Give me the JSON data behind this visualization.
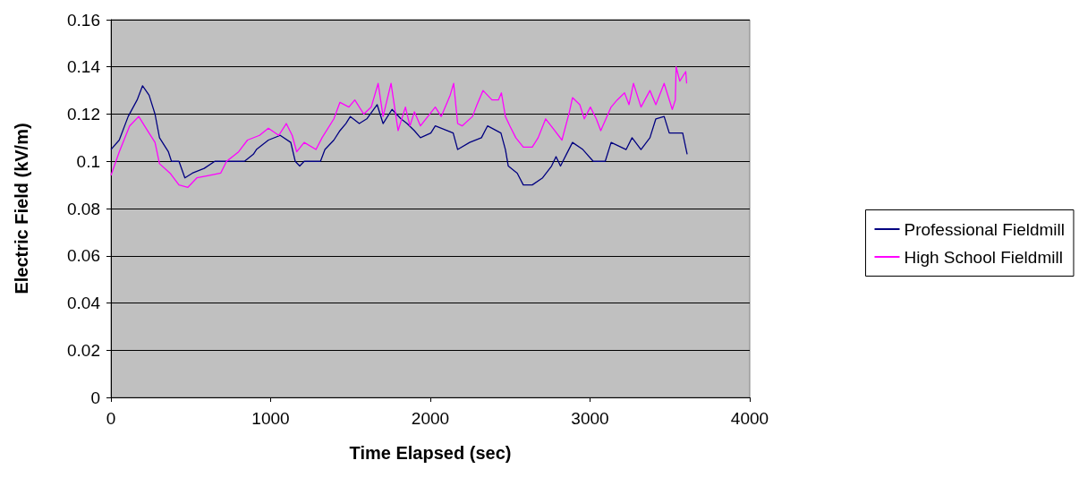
{
  "chart_data": {
    "type": "line",
    "xlabel": "Time Elapsed (sec)",
    "ylabel": "Electric Field (kV/m)",
    "xlim": [
      0,
      4000
    ],
    "xticks": [
      0,
      1000,
      2000,
      3000,
      4000
    ],
    "ylim": [
      0,
      0.16
    ],
    "yticks": [
      0,
      0.02,
      0.04,
      0.06,
      0.08,
      0.1,
      0.12,
      0.14,
      0.16
    ],
    "grid": "y",
    "legend": "right",
    "marker": "none",
    "line_style": "solid",
    "series": [
      {
        "name": "Professional Fieldmill",
        "color": "#000080",
        "x": [
          0,
          52,
          108,
          164,
          198,
          239,
          276,
          304,
          360,
          379,
          426,
          463,
          510,
          584,
          650,
          836,
          892,
          911,
          986,
          1060,
          1126,
          1154,
          1182,
          1210,
          1312,
          1340,
          1396,
          1434,
          1471,
          1499,
          1555,
          1602,
          1667,
          1704,
          1760,
          1816,
          1854,
          1900,
          1938,
          2003,
          2031,
          2143,
          2171,
          2246,
          2320,
          2358,
          2442,
          2470,
          2488,
          2544,
          2582,
          2638,
          2703,
          2759,
          2787,
          2815,
          2852,
          2890,
          2955,
          3020,
          3095,
          3132,
          3226,
          3263,
          3319,
          3375,
          3412,
          3464,
          3496,
          3580,
          3608
        ],
        "values": [
          0.105,
          0.109,
          0.119,
          0.126,
          0.132,
          0.128,
          0.12,
          0.11,
          0.104,
          0.1,
          0.1,
          0.093,
          0.095,
          0.097,
          0.1,
          0.1,
          0.103,
          0.105,
          0.109,
          0.111,
          0.108,
          0.1,
          0.098,
          0.1,
          0.1,
          0.105,
          0.109,
          0.113,
          0.116,
          0.119,
          0.116,
          0.118,
          0.124,
          0.116,
          0.122,
          0.118,
          0.116,
          0.113,
          0.11,
          0.112,
          0.115,
          0.112,
          0.105,
          0.108,
          0.11,
          0.115,
          0.112,
          0.105,
          0.098,
          0.095,
          0.09,
          0.09,
          0.093,
          0.098,
          0.102,
          0.098,
          0.103,
          0.108,
          0.105,
          0.1,
          0.1,
          0.108,
          0.105,
          0.11,
          0.105,
          0.11,
          0.118,
          0.119,
          0.112,
          0.112,
          0.103
        ]
      },
      {
        "name": "High School Fieldmill",
        "color": "#ff00ff",
        "x": [
          0,
          52,
          117,
          174,
          220,
          276,
          304,
          370,
          426,
          482,
          538,
          612,
          687,
          724,
          799,
          855,
          930,
          986,
          1051,
          1098,
          1135,
          1163,
          1210,
          1284,
          1322,
          1396,
          1434,
          1490,
          1527,
          1583,
          1630,
          1673,
          1704,
          1754,
          1798,
          1844,
          1872,
          1900,
          1938,
          2031,
          2068,
          2124,
          2146,
          2171,
          2199,
          2264,
          2292,
          2330,
          2386,
          2426,
          2445,
          2470,
          2498,
          2535,
          2582,
          2638,
          2675,
          2722,
          2768,
          2824,
          2871,
          2890,
          2936,
          2964,
          3002,
          3039,
          3067,
          3132,
          3170,
          3216,
          3244,
          3272,
          3319,
          3375,
          3412,
          3464,
          3515,
          3534,
          3539,
          3562,
          3599,
          3605
        ],
        "values": [
          0.094,
          0.104,
          0.115,
          0.119,
          0.114,
          0.108,
          0.099,
          0.095,
          0.09,
          0.089,
          0.093,
          0.094,
          0.095,
          0.1,
          0.104,
          0.109,
          0.111,
          0.114,
          0.111,
          0.116,
          0.111,
          0.104,
          0.108,
          0.105,
          0.11,
          0.118,
          0.125,
          0.123,
          0.126,
          0.12,
          0.123,
          0.133,
          0.119,
          0.133,
          0.113,
          0.123,
          0.115,
          0.121,
          0.115,
          0.123,
          0.119,
          0.128,
          0.133,
          0.116,
          0.115,
          0.119,
          0.124,
          0.13,
          0.126,
          0.126,
          0.129,
          0.119,
          0.115,
          0.11,
          0.106,
          0.106,
          0.11,
          0.118,
          0.114,
          0.109,
          0.121,
          0.127,
          0.124,
          0.118,
          0.123,
          0.118,
          0.113,
          0.123,
          0.126,
          0.129,
          0.124,
          0.133,
          0.123,
          0.13,
          0.124,
          0.133,
          0.122,
          0.126,
          0.14,
          0.134,
          0.138,
          0.133
        ]
      }
    ]
  }
}
